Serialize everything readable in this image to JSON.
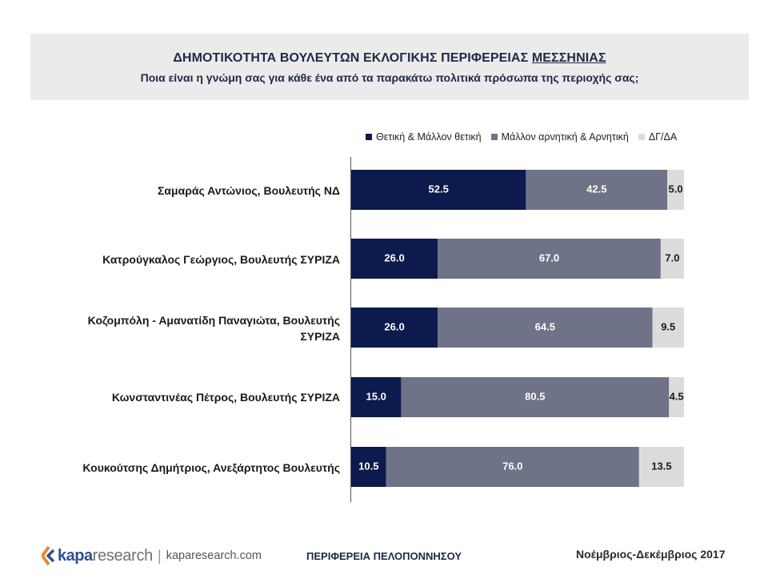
{
  "header": {
    "title_main": "ΔΗΜΟΤΙΚΟΤΗΤΑ ΒΟΥΛΕΥΤΩΝ ΕΚΛΟΓΙΚΗΣ ΠΕΡΙΦΕΡΕΙΑΣ ",
    "title_region": "ΜΕΣΣΗΝΙΑΣ",
    "subtitle": "Ποια είναι η γνώμη σας για κάθε ένα από τα παρακάτω πολιτικά πρόσωπα της περιοχής σας;"
  },
  "chart_data": {
    "type": "bar",
    "orientation": "horizontal",
    "stacked": true,
    "categories": [
      "Σαμαράς Αντώνιος, Βουλευτής ΝΔ",
      "Κατρούγκαλος Γεώργιος, Βουλευτής ΣΥΡΙΖΑ",
      "Κοζομπόλη - Αμανατίδη Παναγιώτα, Βουλευτής ΣΥΡΙΖΑ",
      "Κωνσταντινέας Πέτρος, Βουλευτής ΣΥΡΙΖΑ",
      "Κουκούτσης Δημήτριος, Ανεξάρτητος Βουλευτής"
    ],
    "series": [
      {
        "name": "Θετική & Μάλλον θετική",
        "color": "#0d1a4e",
        "label_color": "#ffffff",
        "values": [
          52.5,
          26.0,
          26.0,
          15.0,
          10.5
        ]
      },
      {
        "name": "Μάλλον αρνητική & Αρνητική",
        "color": "#6f7387",
        "label_color": "#ffffff",
        "values": [
          42.5,
          67.0,
          64.5,
          80.5,
          76.0
        ]
      },
      {
        "name": "ΔΓ/ΔΑ",
        "color": "#dcdcdc",
        "label_color": "#1a1a1a",
        "values": [
          5.0,
          7.0,
          9.5,
          4.5,
          13.5
        ]
      }
    ],
    "xlim": [
      0,
      100
    ],
    "legend_position": "top",
    "grid": false
  },
  "footer": {
    "logo_kapa": "kapa",
    "logo_research": "research",
    "separator": "|",
    "url": "kaparesearch.com",
    "region": "ΠΕΡΙΦΕΡΕΙΑ ΠΕΛΟΠΟΝΝΗΣΟΥ",
    "date": "Νοέμβριος-Δεκέμβριος 2017"
  }
}
